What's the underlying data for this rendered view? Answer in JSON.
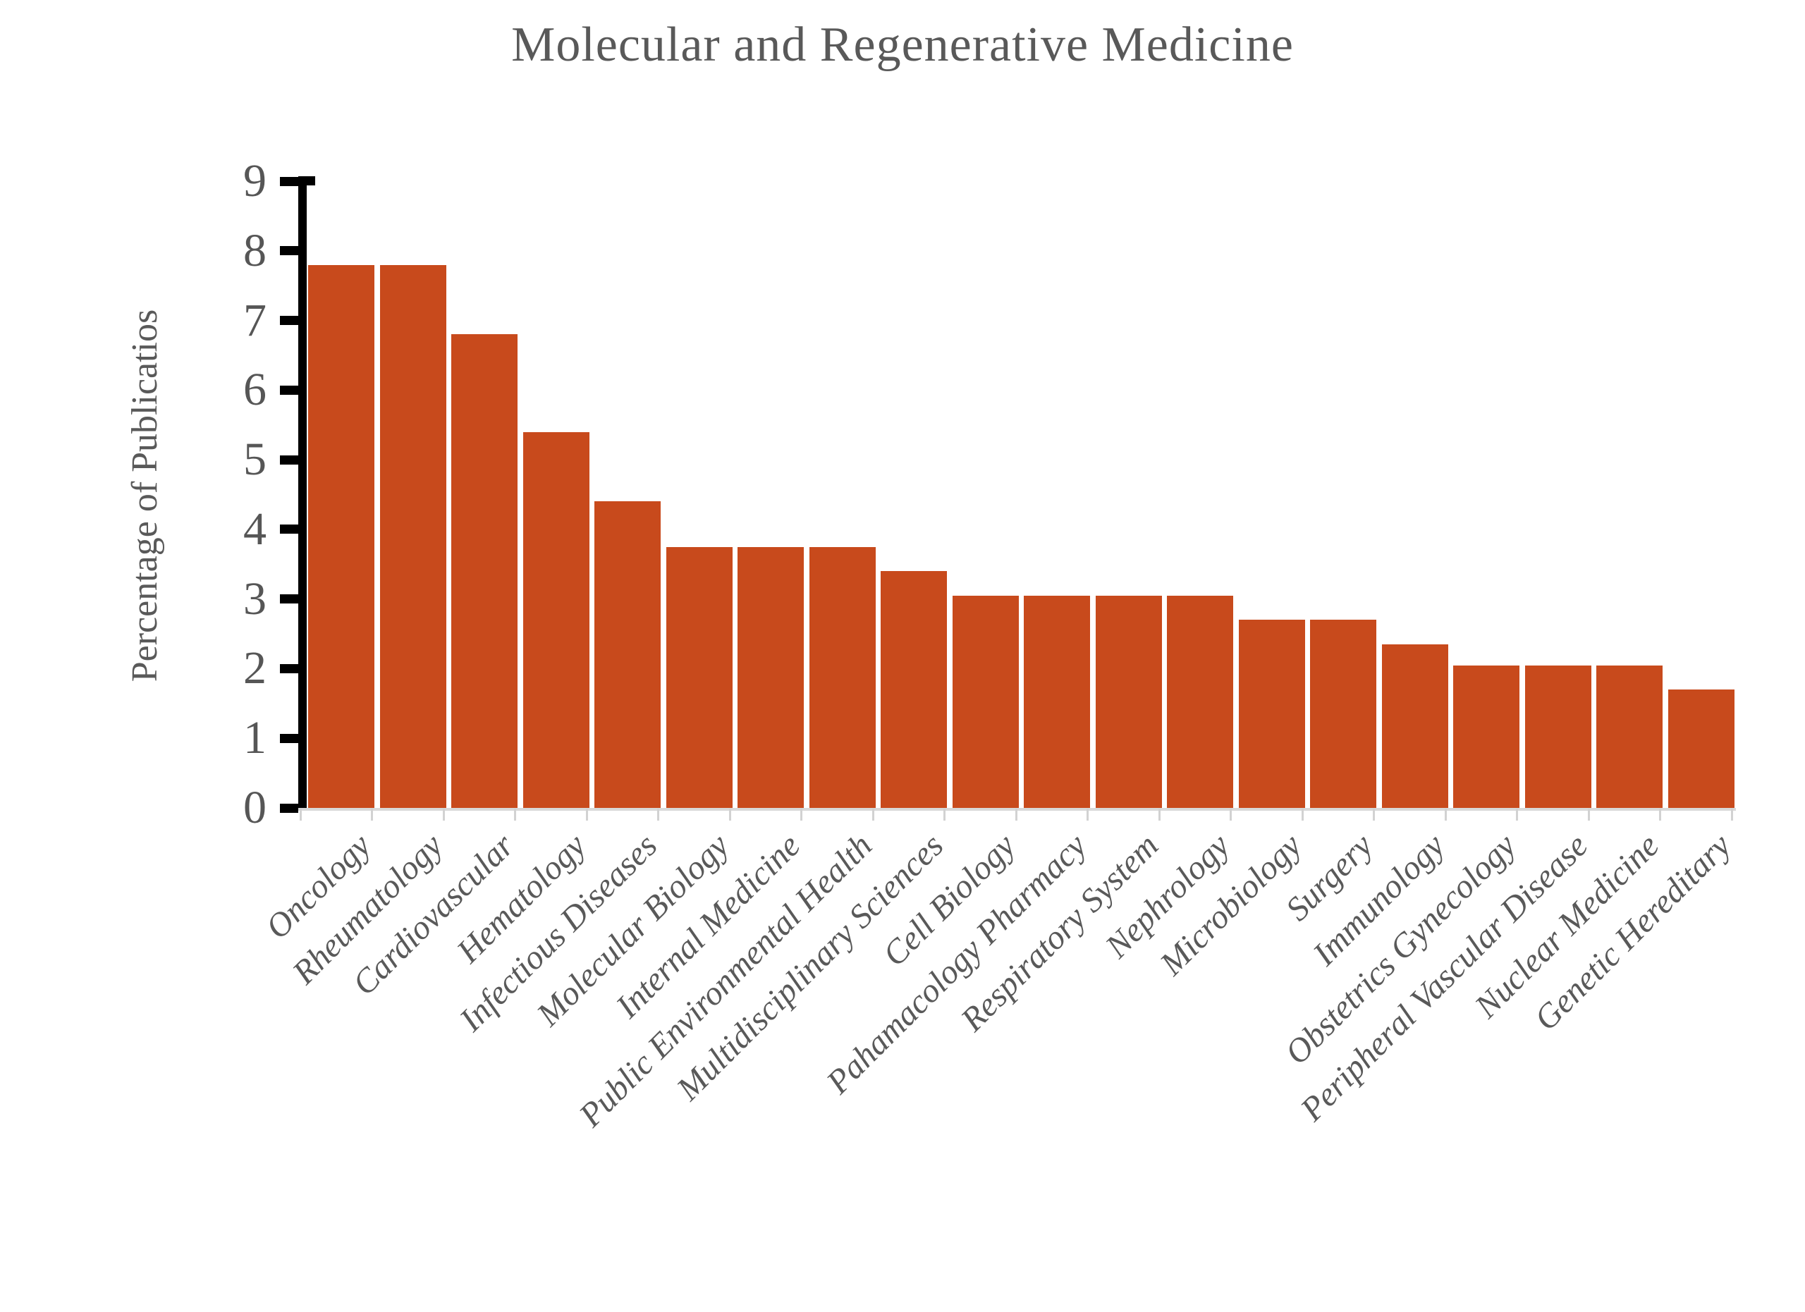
{
  "title": "Molecular and Regenerative Medicine",
  "colors": {
    "bar": "#C84A1C",
    "text_gray": "#595959",
    "axis_black": "#000000",
    "baseline_gray": "#D9D9D9"
  },
  "chart_data": {
    "type": "bar",
    "title": "Molecular and Regenerative Medicine",
    "xlabel": "",
    "ylabel": "Percentage of Publicatios",
    "ylim": [
      0,
      9
    ],
    "yticks": [
      0,
      1,
      2,
      3,
      4,
      5,
      6,
      7,
      8,
      9
    ],
    "grid": false,
    "legend": false,
    "bar_color": "#C84A1C",
    "categories": [
      "Oncology",
      "Rheumatology",
      "Cardiovascular",
      "Hematology",
      "Infectious Diseases",
      "Molecular Biology",
      "Internal Medicine",
      "Public Environmental Health",
      "Multidisciplinary Sciences",
      "Cell Biology",
      "Pahamacology Pharmacy",
      "Respiratory System",
      "Nephrology",
      "Microbiology",
      "Surgery",
      "Immunology",
      "Obstetrics Gynecology",
      "Peripheral Vascular Disease",
      "Nuclear Medicine",
      "Genetic Hereditary"
    ],
    "values": [
      7.8,
      7.8,
      6.8,
      5.4,
      4.4,
      3.75,
      3.75,
      3.75,
      3.4,
      3.05,
      3.05,
      3.05,
      3.05,
      2.7,
      2.7,
      2.35,
      2.05,
      2.05,
      2.05,
      1.7
    ]
  }
}
